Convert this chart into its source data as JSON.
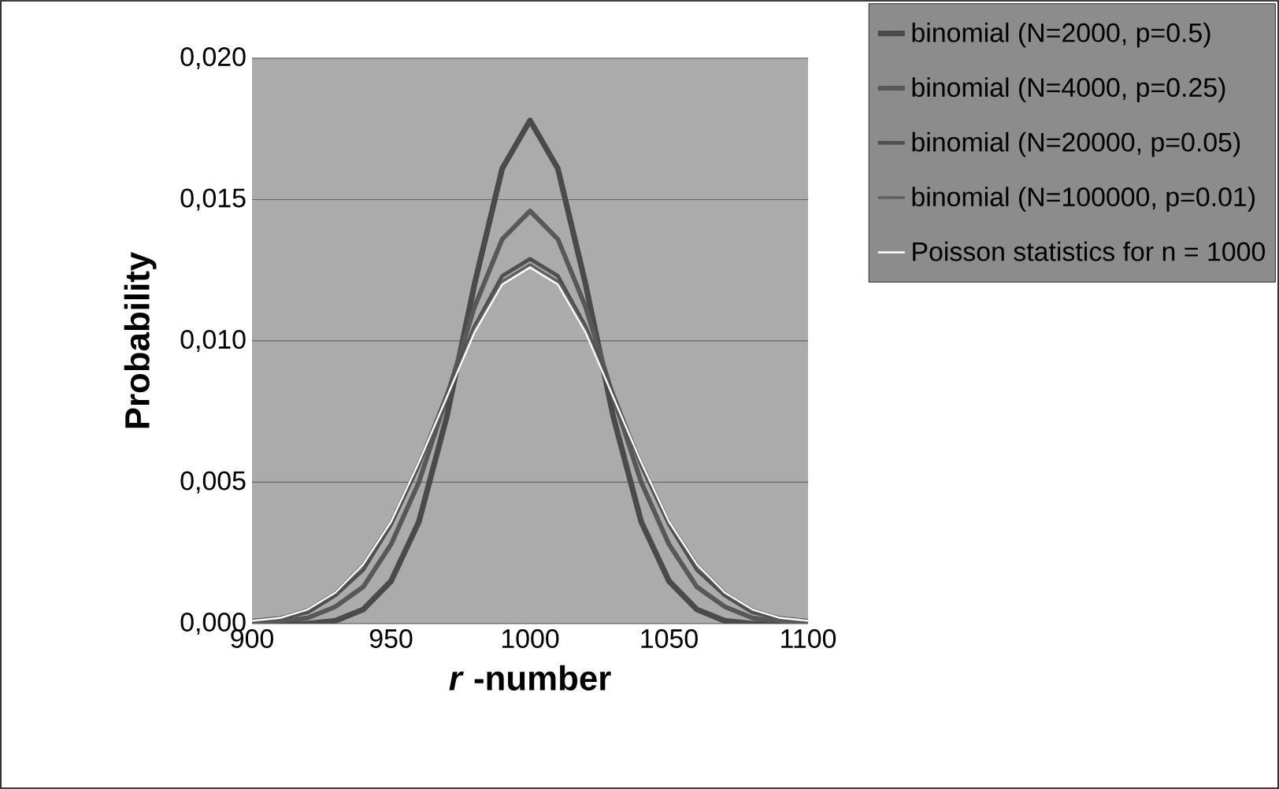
{
  "chart_data": {
    "type": "line",
    "xlabel": "*r* -number",
    "ylabel": "Probability",
    "x": [
      900,
      910,
      920,
      930,
      940,
      950,
      960,
      970,
      980,
      990,
      1000,
      1010,
      1020,
      1030,
      1040,
      1050,
      1060,
      1070,
      1080,
      1090,
      1100
    ],
    "series": [
      {
        "name": "binomial (N=2000, p=0.5)",
        "color": "#4a4a4a",
        "values": [
          0.0,
          0.0,
          0.0,
          0.0001,
          0.0005,
          0.0015,
          0.0036,
          0.0073,
          0.012,
          0.0161,
          0.0178,
          0.0161,
          0.012,
          0.0073,
          0.0036,
          0.0015,
          0.0005,
          0.0001,
          0.0,
          0.0,
          0.0
        ]
      },
      {
        "name": "binomial (N=4000, p=0.25)",
        "color": "#585858",
        "values": [
          0.0,
          0.0001,
          0.0002,
          0.0006,
          0.0013,
          0.0028,
          0.005,
          0.008,
          0.0112,
          0.0136,
          0.0146,
          0.0136,
          0.0112,
          0.008,
          0.005,
          0.0028,
          0.0013,
          0.0006,
          0.0002,
          0.0001,
          0.0
        ]
      },
      {
        "name": "binomial (N=20000, p=0.05)",
        "color": "#505050",
        "values": [
          0.0001,
          0.0002,
          0.0004,
          0.001,
          0.0019,
          0.0035,
          0.0056,
          0.0081,
          0.0105,
          0.0123,
          0.0129,
          0.0123,
          0.0105,
          0.0081,
          0.0056,
          0.0035,
          0.0019,
          0.001,
          0.0004,
          0.0002,
          0.0001
        ]
      },
      {
        "name": "binomial (N=100000, p=0.01)",
        "color": "#606060",
        "values": [
          0.0001,
          0.0002,
          0.0005,
          0.0011,
          0.0021,
          0.0036,
          0.0057,
          0.008,
          0.0104,
          0.0121,
          0.0127,
          0.0121,
          0.0104,
          0.008,
          0.0057,
          0.0036,
          0.0021,
          0.0011,
          0.0005,
          0.0002,
          0.0001
        ]
      },
      {
        "name": "Poisson statistics for n = 1000",
        "color": "#ffffff",
        "values": [
          0.0001,
          0.0002,
          0.0005,
          0.0011,
          0.0021,
          0.0036,
          0.0057,
          0.008,
          0.0103,
          0.012,
          0.0126,
          0.012,
          0.0103,
          0.008,
          0.0057,
          0.0036,
          0.0021,
          0.0011,
          0.0005,
          0.0002,
          0.0001
        ]
      }
    ],
    "xlim": [
      900,
      1100
    ],
    "ylim": [
      0,
      0.02
    ],
    "xticks": [
      900,
      950,
      1000,
      1050,
      1100
    ],
    "yticks": [
      {
        "value": 0,
        "label": "0,000"
      },
      {
        "value": 0.005,
        "label": "0,005"
      },
      {
        "value": 0.01,
        "label": "0,010"
      },
      {
        "value": 0.015,
        "label": "0,015"
      },
      {
        "value": 0.02,
        "label": "0,020"
      }
    ],
    "grid": "y",
    "legend": "top right",
    "marker": "none",
    "line_style": "solid"
  }
}
